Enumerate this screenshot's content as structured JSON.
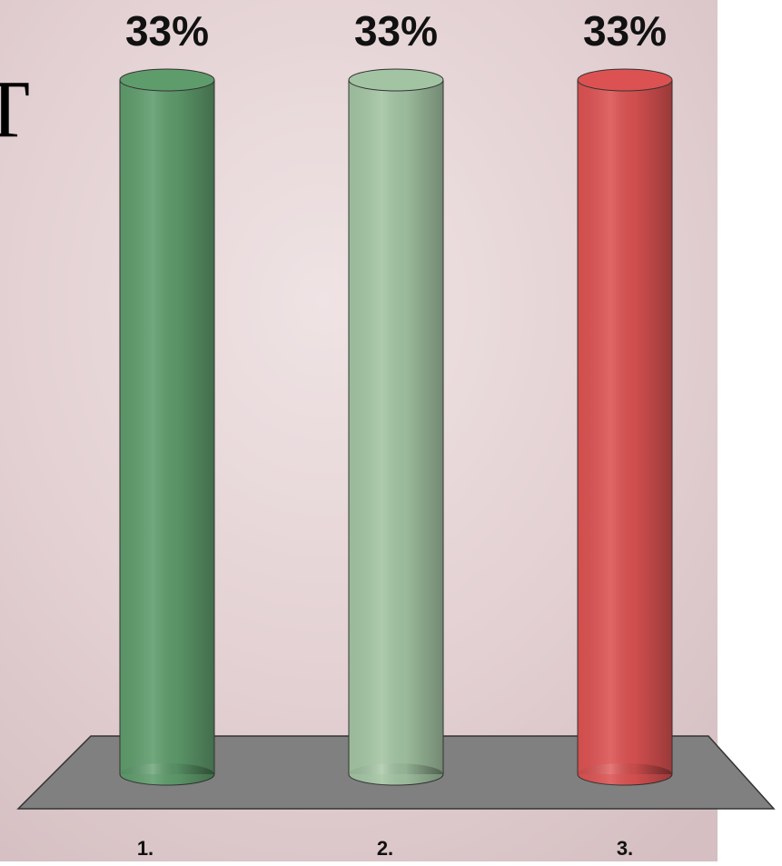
{
  "chart_data": {
    "type": "bar",
    "title": "T",
    "categories": [
      "1.",
      "2.",
      "3."
    ],
    "series": [
      {
        "values": [
          33,
          33,
          33
        ],
        "value_labels": [
          "33%",
          "33%",
          "33%"
        ],
        "colors": [
          "#5f9c6c",
          "#a3c4a3",
          "#dc5252"
        ]
      }
    ]
  }
}
